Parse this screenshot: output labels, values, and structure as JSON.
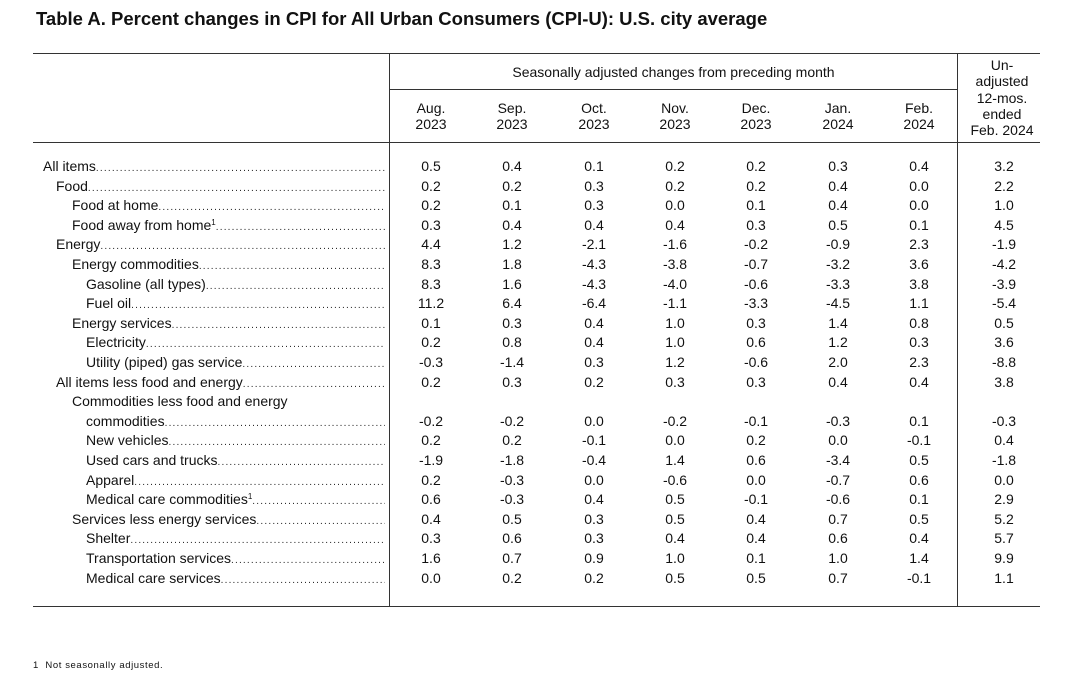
{
  "title": "Table A. Percent changes in CPI for All Urban Consumers (CPI-U): U.S. city average",
  "header": {
    "group_label": "Seasonally adjusted changes from preceding month",
    "months": [
      {
        "line1": "Aug.",
        "line2": "2023"
      },
      {
        "line1": "Sep.",
        "line2": "2023"
      },
      {
        "line1": "Oct.",
        "line2": "2023"
      },
      {
        "line1": "Nov.",
        "line2": "2023"
      },
      {
        "line1": "Dec.",
        "line2": "2023"
      },
      {
        "line1": "Jan.",
        "line2": "2024"
      },
      {
        "line1": "Feb.",
        "line2": "2024"
      }
    ],
    "unadjusted": [
      "Un-",
      "adjusted",
      "12-mos.",
      "ended",
      "Feb. 2024"
    ]
  },
  "rows": [
    {
      "label": "All items",
      "indent": 0,
      "values": [
        "0.5",
        "0.4",
        "0.1",
        "0.2",
        "0.2",
        "0.3",
        "0.4",
        "3.2"
      ]
    },
    {
      "label": "Food",
      "indent": 1,
      "values": [
        "0.2",
        "0.2",
        "0.3",
        "0.2",
        "0.2",
        "0.4",
        "0.0",
        "2.2"
      ]
    },
    {
      "label": "Food at home",
      "indent": 2,
      "values": [
        "0.2",
        "0.1",
        "0.3",
        "0.0",
        "0.1",
        "0.4",
        "0.0",
        "1.0"
      ]
    },
    {
      "label": "Food away from home",
      "footnote": "1",
      "indent": 2,
      "values": [
        "0.3",
        "0.4",
        "0.4",
        "0.4",
        "0.3",
        "0.5",
        "0.1",
        "4.5"
      ]
    },
    {
      "label": "Energy",
      "indent": 1,
      "values": [
        "4.4",
        "1.2",
        "-2.1",
        "-1.6",
        "-0.2",
        "-0.9",
        "2.3",
        "-1.9"
      ]
    },
    {
      "label": "Energy commodities",
      "indent": 2,
      "values": [
        "8.3",
        "1.8",
        "-4.3",
        "-3.8",
        "-0.7",
        "-3.2",
        "3.6",
        "-4.2"
      ]
    },
    {
      "label": "Gasoline (all types)",
      "indent": 3,
      "values": [
        "8.3",
        "1.6",
        "-4.3",
        "-4.0",
        "-0.6",
        "-3.3",
        "3.8",
        "-3.9"
      ]
    },
    {
      "label": "Fuel oil",
      "indent": 3,
      "values": [
        "11.2",
        "6.4",
        "-6.4",
        "-1.1",
        "-3.3",
        "-4.5",
        "1.1",
        "-5.4"
      ]
    },
    {
      "label": "Energy services",
      "indent": 2,
      "values": [
        "0.1",
        "0.3",
        "0.4",
        "1.0",
        "0.3",
        "1.4",
        "0.8",
        "0.5"
      ]
    },
    {
      "label": "Electricity",
      "indent": 3,
      "values": [
        "0.2",
        "0.8",
        "0.4",
        "1.0",
        "0.6",
        "1.2",
        "0.3",
        "3.6"
      ]
    },
    {
      "label": "Utility (piped) gas service",
      "indent": 3,
      "values": [
        "-0.3",
        "-1.4",
        "0.3",
        "1.2",
        "-0.6",
        "2.0",
        "2.3",
        "-8.8"
      ]
    },
    {
      "label": "All items less food and energy",
      "indent": 1,
      "values": [
        "0.2",
        "0.3",
        "0.2",
        "0.3",
        "0.3",
        "0.4",
        "0.4",
        "3.8"
      ]
    },
    {
      "label": "Commodities less food and energy",
      "indent": 2,
      "heading_only": true
    },
    {
      "label": "commodities",
      "indent": 3,
      "values": [
        "-0.2",
        "-0.2",
        "0.0",
        "-0.2",
        "-0.1",
        "-0.3",
        "0.1",
        "-0.3"
      ]
    },
    {
      "label": "New vehicles",
      "indent": 3,
      "values": [
        "0.2",
        "0.2",
        "-0.1",
        "0.0",
        "0.2",
        "0.0",
        "-0.1",
        "0.4"
      ]
    },
    {
      "label": "Used cars and trucks",
      "indent": 3,
      "values": [
        "-1.9",
        "-1.8",
        "-0.4",
        "1.4",
        "0.6",
        "-3.4",
        "0.5",
        "-1.8"
      ]
    },
    {
      "label": "Apparel",
      "indent": 3,
      "values": [
        "0.2",
        "-0.3",
        "0.0",
        "-0.6",
        "0.0",
        "-0.7",
        "0.6",
        "0.0"
      ]
    },
    {
      "label": "Medical care commodities",
      "footnote": "1",
      "indent": 3,
      "values": [
        "0.6",
        "-0.3",
        "0.4",
        "0.5",
        "-0.1",
        "-0.6",
        "0.1",
        "2.9"
      ]
    },
    {
      "label": "Services less energy services",
      "indent": 2,
      "values": [
        "0.4",
        "0.5",
        "0.3",
        "0.5",
        "0.4",
        "0.7",
        "0.5",
        "5.2"
      ]
    },
    {
      "label": "Shelter",
      "indent": 3,
      "values": [
        "0.3",
        "0.6",
        "0.3",
        "0.4",
        "0.4",
        "0.6",
        "0.4",
        "5.7"
      ]
    },
    {
      "label": "Transportation services",
      "indent": 3,
      "values": [
        "1.6",
        "0.7",
        "0.9",
        "1.0",
        "0.1",
        "1.0",
        "1.4",
        "9.9"
      ]
    },
    {
      "label": "Medical care services",
      "indent": 3,
      "values": [
        "0.0",
        "0.2",
        "0.2",
        "0.5",
        "0.5",
        "0.7",
        "-0.1",
        "1.1"
      ]
    }
  ],
  "footnote": {
    "marker": "1",
    "text": "Not seasonally adjusted."
  }
}
